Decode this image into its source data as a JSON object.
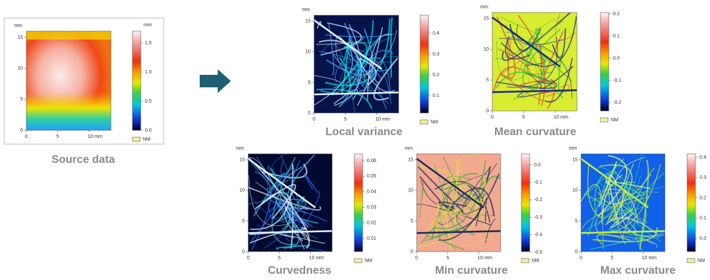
{
  "panels": [
    {
      "caption": "Source data",
      "y_unit": "mm",
      "colorbar_unit": "mm",
      "xticks": [
        "0",
        "5",
        "10 mm"
      ],
      "yticks": [
        "15",
        "10",
        "5",
        "0"
      ],
      "colorbar_ticks": [
        "1.5",
        "1.0",
        "0.5",
        "0.0"
      ],
      "legend": "NM"
    },
    {
      "caption": "Local variance",
      "y_unit": "mm",
      "xticks": [
        "0",
        "5",
        "10 mm"
      ],
      "yticks": [
        "15",
        "10",
        "5",
        "0"
      ],
      "colorbar_ticks": [
        "0.4",
        "0.3",
        "0.2",
        "0.1"
      ],
      "legend": "NM"
    },
    {
      "caption": "Mean curvature",
      "y_unit": "mm",
      "xticks": [
        "0",
        "5",
        "10 mm"
      ],
      "yticks": [
        "15",
        "10",
        "5",
        "0"
      ],
      "colorbar_ticks": [
        "0.2",
        "0.1",
        "0.0",
        "-0.1",
        "-0.2"
      ],
      "legend": "NM"
    },
    {
      "caption": "Curvedness",
      "y_unit": "mm",
      "xticks": [
        "0",
        "5",
        "10 mm"
      ],
      "yticks": [
        "15",
        "10",
        "5",
        "0"
      ],
      "colorbar_ticks": [
        "0.06",
        "0.05",
        "0.04",
        "0.03",
        "0.02",
        "0.01"
      ],
      "legend": "NM"
    },
    {
      "caption": "Min curvature",
      "y_unit": "mm",
      "xticks": [
        "0",
        "5",
        "10 mm"
      ],
      "yticks": [
        "15",
        "10",
        "5",
        "0"
      ],
      "colorbar_ticks": [
        "0.0",
        "-0.1",
        "-0.2",
        "-0.3",
        "-0.4",
        "-0.5"
      ],
      "legend": "NM"
    },
    {
      "caption": "Max curvature",
      "y_unit": "mm",
      "xticks": [
        "0",
        "5",
        "10 mm"
      ],
      "yticks": [
        "15",
        "10",
        "5",
        "0"
      ],
      "colorbar_ticks": [
        "0.4",
        "0.3",
        "0.2",
        "0.1",
        "0.0"
      ],
      "legend": "NM"
    }
  ]
}
